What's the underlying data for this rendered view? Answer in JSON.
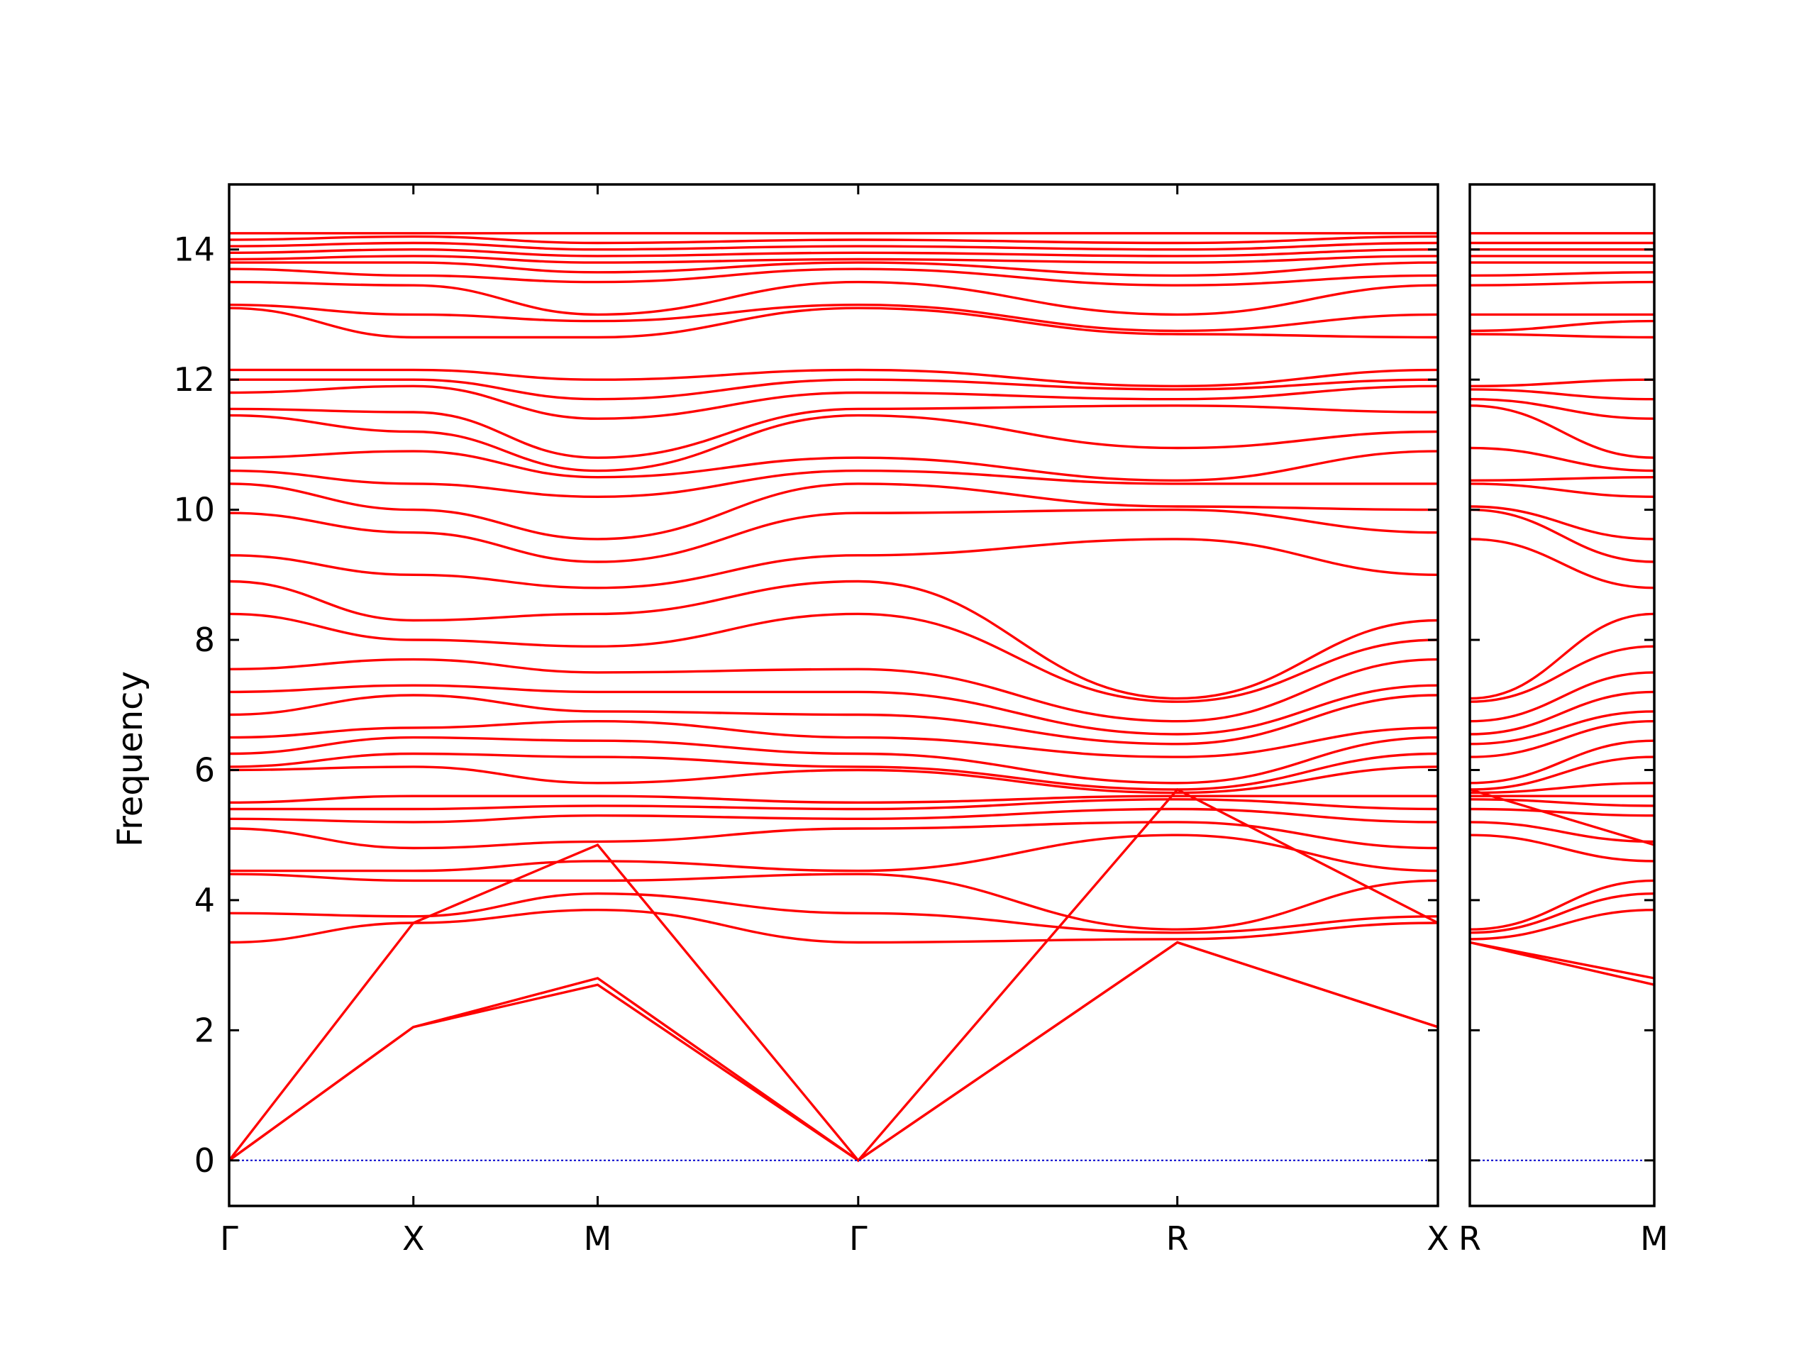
{
  "chart_data": {
    "type": "line",
    "ylabel": "Frequency",
    "ylim": [
      -0.7,
      15
    ],
    "yticks": [
      0,
      2,
      4,
      6,
      8,
      10,
      12,
      14
    ],
    "grid": false,
    "legend": "none",
    "colors": {
      "band": "#ff0000",
      "zero_line": "#0000cc",
      "axes": "#000000"
    },
    "panels": [
      {
        "id": "main",
        "xticks": [
          {
            "label": "Γ",
            "pos": 0.0
          },
          {
            "label": "X",
            "pos": 0.5
          },
          {
            "label": "M",
            "pos": 1.0
          },
          {
            "label": "Γ",
            "pos": 1.7071
          },
          {
            "label": "R",
            "pos": 2.5731
          },
          {
            "label": "X",
            "pos": 3.2802
          }
        ]
      },
      {
        "id": "secondary",
        "xticks": [
          {
            "label": "R",
            "pos": 0.0
          },
          {
            "label": "M",
            "pos": 0.5
          }
        ]
      }
    ],
    "acoustic_branches": {
      "main": [
        [
          [
            0,
            0
          ],
          [
            0.5,
            2.05
          ],
          [
            1.0,
            2.8
          ],
          [
            1.7071,
            0
          ],
          [
            2.5731,
            3.35
          ],
          [
            3.2802,
            2.05
          ]
        ],
        [
          [
            0,
            0
          ],
          [
            0.5,
            2.05
          ],
          [
            1.0,
            2.7
          ],
          [
            1.7071,
            0
          ],
          [
            2.5731,
            3.35
          ],
          [
            3.2802,
            2.05
          ]
        ],
        [
          [
            0,
            0
          ],
          [
            0.5,
            3.65
          ],
          [
            1.0,
            4.85
          ],
          [
            1.7071,
            0
          ],
          [
            2.5731,
            5.7
          ],
          [
            3.2802,
            3.65
          ]
        ]
      ],
      "secondary": [
        [
          [
            0,
            3.35
          ],
          [
            0.5,
            2.8
          ]
        ],
        [
          [
            0,
            3.35
          ],
          [
            0.5,
            2.7
          ]
        ],
        [
          [
            0,
            5.7
          ],
          [
            0.5,
            4.85
          ]
        ]
      ]
    },
    "optical_band_levels": {
      "gamma": [
        3.35,
        3.8,
        4.4,
        4.45,
        5.1,
        5.25,
        5.4,
        5.5,
        6.0,
        6.05,
        6.25,
        6.5,
        6.85,
        7.2,
        7.55,
        8.4,
        8.9,
        9.3,
        9.95,
        10.4,
        10.6,
        10.8,
        11.45,
        11.55,
        11.8,
        12.0,
        12.15,
        13.1,
        13.15,
        13.5,
        13.7,
        13.8,
        13.85,
        13.95,
        14.05,
        14.15,
        14.25
      ],
      "x": [
        3.65,
        3.75,
        4.3,
        4.45,
        4.8,
        5.2,
        5.4,
        5.6,
        6.05,
        6.25,
        6.5,
        6.65,
        7.15,
        7.3,
        7.7,
        8.0,
        8.3,
        9.0,
        9.65,
        10.0,
        10.4,
        10.9,
        11.2,
        11.5,
        11.9,
        12.0,
        12.15,
        12.65,
        13.0,
        13.45,
        13.6,
        13.8,
        13.9,
        14.0,
        14.1,
        14.2,
        14.25
      ],
      "m": [
        3.85,
        4.1,
        4.3,
        4.6,
        4.9,
        5.3,
        5.45,
        5.6,
        5.8,
        6.2,
        6.45,
        6.75,
        6.9,
        7.2,
        7.5,
        7.9,
        8.4,
        8.8,
        9.2,
        9.55,
        10.2,
        10.5,
        10.6,
        10.8,
        11.4,
        11.7,
        12.0,
        12.65,
        12.9,
        13.0,
        13.5,
        13.65,
        13.8,
        13.9,
        14.0,
        14.1,
        14.25
      ],
      "r": [
        3.4,
        3.5,
        3.55,
        5.0,
        5.2,
        5.4,
        5.55,
        5.6,
        5.65,
        5.7,
        5.8,
        6.2,
        6.4,
        6.55,
        6.75,
        7.05,
        7.1,
        9.55,
        10.0,
        10.05,
        10.4,
        10.45,
        10.95,
        11.6,
        11.7,
        11.85,
        11.9,
        12.7,
        12.75,
        13.0,
        13.45,
        13.6,
        13.8,
        13.9,
        14.0,
        14.1,
        14.25
      ]
    }
  }
}
